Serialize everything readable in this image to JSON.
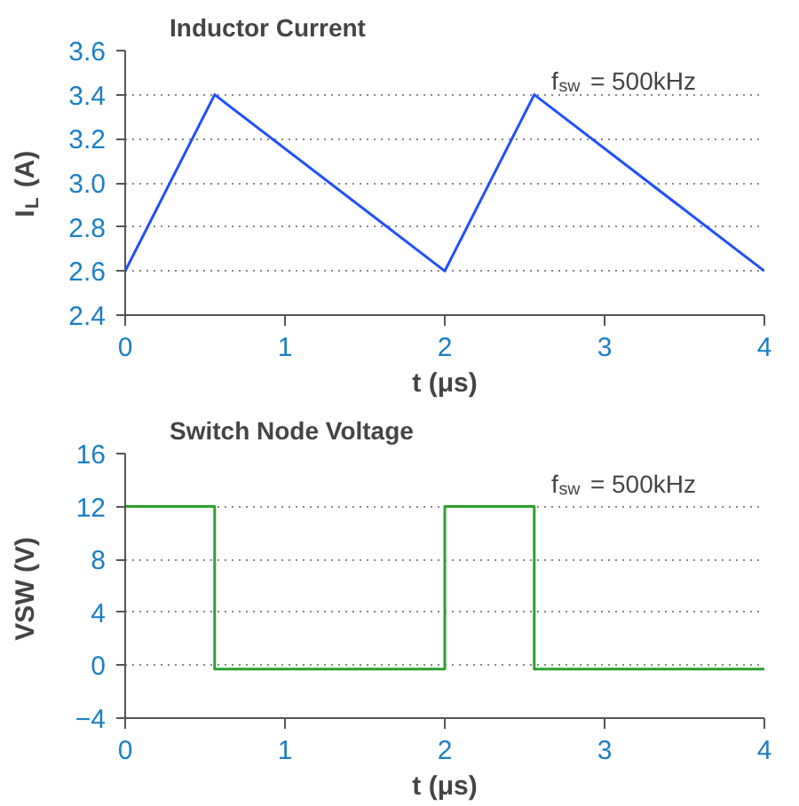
{
  "chart_data": [
    {
      "type": "line",
      "title": "Inductor Current",
      "xlabel": "t (μs)",
      "ylabel": "I$_{L}$ (A)",
      "annotations": [
        "f$_{sw}$ = 500kHz"
      ],
      "x": [
        0,
        0.56,
        2,
        2.56,
        4
      ],
      "series": [
        {
          "color": "#1f4fff",
          "values": [
            2.6,
            3.4,
            2.6,
            3.4,
            2.6
          ]
        }
      ],
      "xlim": [
        0,
        4
      ],
      "xticks": [
        0,
        1,
        2,
        3,
        4
      ],
      "ylim": [
        2.4,
        3.6
      ],
      "yticks": [
        {
          "value": 2.4,
          "label": "2.4"
        },
        {
          "value": 2.6,
          "label": "2.6"
        },
        {
          "value": 2.8,
          "label": "2.8"
        },
        {
          "value": 3.0,
          "label": "3.0"
        },
        {
          "value": 3.2,
          "label": "3.2"
        },
        {
          "value": 3.4,
          "label": "3.4"
        },
        {
          "value": 3.6,
          "label": "3.6"
        }
      ],
      "grid": "y",
      "line_style": "solid"
    },
    {
      "type": "step",
      "title": "Switch Node Voltage",
      "xlabel": "t (μs)",
      "ylabel": "VSW (V)",
      "annotations": [
        "f$_{sw}$ = 500kHz"
      ],
      "x": [
        0,
        0.56,
        2,
        2.56,
        4
      ],
      "series": [
        {
          "color": "#2ca02c",
          "values": [
            12,
            -0.3,
            12,
            -0.3,
            -0.3
          ]
        }
      ],
      "xlim": [
        0,
        4
      ],
      "xticks": [
        0,
        1,
        2,
        3,
        4
      ],
      "ylim": [
        -4,
        16
      ],
      "yticks": [
        -4,
        0,
        4,
        8,
        12,
        16
      ],
      "grid": "y",
      "line_style": "solid"
    }
  ]
}
